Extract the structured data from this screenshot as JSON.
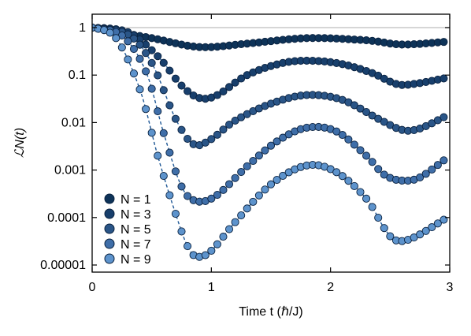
{
  "chart_data": {
    "type": "scatter",
    "xlabel": "Time t (ℏ/J)",
    "ylabel": "ℒN(t)",
    "xlim": [
      0,
      3
    ],
    "ylim": [
      5e-06,
      1.6
    ],
    "yscale": "log",
    "grid": false,
    "legend": "bottom-left",
    "xticks": [
      0,
      1,
      2,
      3
    ],
    "xtick_labels": [
      "0",
      "1",
      "2",
      "3"
    ],
    "yticks": [
      1,
      0.1,
      0.01,
      0.001,
      0.0001,
      1e-05
    ],
    "ytick_labels": [
      "1",
      "0.1",
      "0.01",
      "0.001",
      "0.0001",
      "0.00001"
    ],
    "reference_line": {
      "y": 1,
      "color": "#c8c8c8"
    },
    "series": [
      {
        "name": "N = 1",
        "color": "#0e3358",
        "points": [
          [
            0,
            1
          ],
          [
            0.5,
            0.6
          ],
          [
            0.9,
            0.39
          ],
          [
            1.3,
            0.46
          ],
          [
            1.8,
            0.6
          ],
          [
            2.3,
            0.54
          ],
          [
            2.6,
            0.44
          ],
          [
            2.95,
            0.5
          ]
        ]
      },
      {
        "name": "N = 3",
        "color": "#183f6c",
        "points": [
          [
            0,
            1
          ],
          [
            0.3,
            0.8
          ],
          [
            0.55,
            0.25
          ],
          [
            0.75,
            0.06
          ],
          [
            0.9,
            0.033
          ],
          [
            1.05,
            0.038
          ],
          [
            1.3,
            0.1
          ],
          [
            1.6,
            0.18
          ],
          [
            1.85,
            0.2
          ],
          [
            2.1,
            0.17
          ],
          [
            2.35,
            0.11
          ],
          [
            2.55,
            0.065
          ],
          [
            2.7,
            0.065
          ],
          [
            2.95,
            0.085
          ]
        ]
      },
      {
        "name": "N = 5",
        "color": "#2a5587",
        "points": [
          [
            0,
            1
          ],
          [
            0.3,
            0.72
          ],
          [
            0.5,
            0.18
          ],
          [
            0.7,
            0.012
          ],
          [
            0.85,
            0.0035
          ],
          [
            1,
            0.0045
          ],
          [
            1.2,
            0.011
          ],
          [
            1.5,
            0.025
          ],
          [
            1.8,
            0.038
          ],
          [
            2.1,
            0.03
          ],
          [
            2.4,
            0.012
          ],
          [
            2.6,
            0.007
          ],
          [
            2.75,
            0.0075
          ],
          [
            2.95,
            0.013
          ]
        ]
      },
      {
        "name": "N = 7",
        "color": "#3f6ea8",
        "points": [
          [
            0,
            1
          ],
          [
            0.25,
            0.68
          ],
          [
            0.45,
            0.12
          ],
          [
            0.6,
            0.006
          ],
          [
            0.75,
            0.00045
          ],
          [
            0.88,
            0.00022
          ],
          [
            1.05,
            0.0003
          ],
          [
            1.3,
            0.0012
          ],
          [
            1.55,
            0.004
          ],
          [
            1.8,
            0.0078
          ],
          [
            2.05,
            0.0065
          ],
          [
            2.3,
            0.002
          ],
          [
            2.45,
            0.0008
          ],
          [
            2.6,
            0.0006
          ],
          [
            2.75,
            0.0007
          ],
          [
            2.95,
            0.0016
          ]
        ]
      },
      {
        "name": "N = 9",
        "color": "#5d93cc",
        "points": [
          [
            0,
            1
          ],
          [
            0.2,
            0.6
          ],
          [
            0.4,
            0.05
          ],
          [
            0.55,
            0.002
          ],
          [
            0.7,
            0.00012
          ],
          [
            0.8,
            2.5e-05
          ],
          [
            0.88,
            1.5e-05
          ],
          [
            1,
            2e-05
          ],
          [
            1.2,
            8e-05
          ],
          [
            1.5,
            0.0005
          ],
          [
            1.8,
            0.00125
          ],
          [
            2.05,
            0.0009
          ],
          [
            2.3,
            0.00025
          ],
          [
            2.45,
            6e-05
          ],
          [
            2.55,
            3.3e-05
          ],
          [
            2.7,
            3.8e-05
          ],
          [
            2.95,
            9e-05
          ]
        ]
      }
    ]
  }
}
